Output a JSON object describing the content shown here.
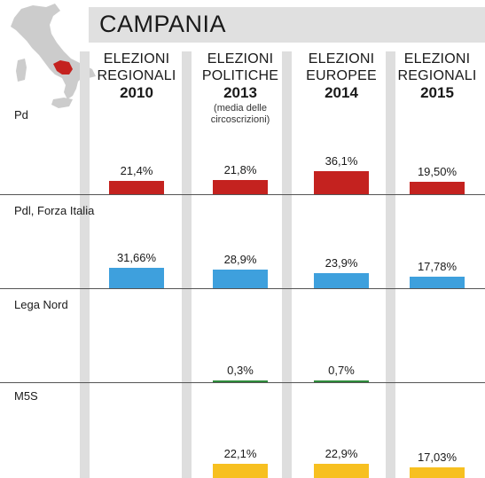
{
  "title": "CAMPANIA",
  "colors": {
    "Pd": "#c4221f",
    "Pdl, Forza Italia": "#3ea0dd",
    "Lega Nord": "#2e8b3a",
    "M5S": "#f7c020",
    "band": "#dedede",
    "map_fill": "#cccccc",
    "map_highlight": "#c4221f"
  },
  "columns": [
    {
      "line1": "ELEZIONI",
      "line2": "REGIONALI",
      "year": "2010",
      "note": ""
    },
    {
      "line1": "ELEZIONI",
      "line2": "POLITICHE",
      "year": "2013",
      "note": "(media delle circoscrizioni)"
    },
    {
      "line1": "ELEZIONI",
      "line2": "EUROPEE",
      "year": "2014",
      "note": ""
    },
    {
      "line1": "ELEZIONI",
      "line2": "REGIONALI",
      "year": "2015",
      "note": ""
    }
  ],
  "chart_data": {
    "type": "bar",
    "title": "CAMPANIA",
    "categories": [
      "ELEZIONI REGIONALI 2010",
      "ELEZIONI POLITICHE 2013",
      "ELEZIONI EUROPEE 2014",
      "ELEZIONI REGIONALI 2015"
    ],
    "series": [
      {
        "name": "Pd",
        "values": [
          21.4,
          21.8,
          36.1,
          19.5
        ],
        "labels": [
          "21,4%",
          "21,8%",
          "36,1%",
          "19,50%"
        ]
      },
      {
        "name": "Pdl, Forza Italia",
        "values": [
          31.66,
          28.9,
          23.9,
          17.78
        ],
        "labels": [
          "31,66%",
          "28,9%",
          "23,9%",
          "17,78%"
        ]
      },
      {
        "name": "Lega Nord",
        "values": [
          null,
          0.3,
          0.7,
          null
        ],
        "labels": [
          "",
          "0,3%",
          "0,7%",
          ""
        ]
      },
      {
        "name": "M5S",
        "values": [
          null,
          22.1,
          22.9,
          17.03
        ],
        "labels": [
          "",
          "22,1%",
          "22,9%",
          "17,03%"
        ]
      }
    ],
    "grid": false,
    "legend": "none"
  }
}
